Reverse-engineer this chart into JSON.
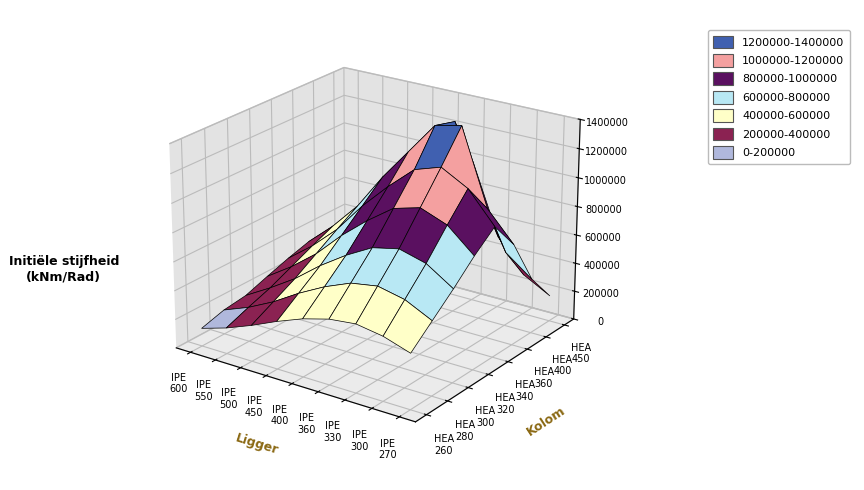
{
  "ligger_labels": [
    "IPE 600",
    "IPE 550",
    "IPE 500",
    "IPE 450",
    "IPE 400",
    "IPE 360",
    "IPE 330",
    "IPE 300",
    "IPE 270"
  ],
  "kolom_labels": [
    "HEA 260",
    "HEA 280",
    "HEA 300",
    "HEA 320",
    "HEA 340",
    "HEA 360",
    "HEA 400",
    "HEA 450"
  ],
  "ylabel_left": "Initiële stijfheid\n(kNm/Rad)",
  "xlabel": "Ligger",
  "kolom_label": "Kolom",
  "zlim": [
    0,
    1400000
  ],
  "zticks": [
    0,
    200000,
    400000,
    600000,
    800000,
    1000000,
    1200000,
    1400000
  ],
  "color_levels": [
    0,
    200000,
    400000,
    600000,
    800000,
    1000000,
    1200000,
    1400000
  ],
  "surf_colors": [
    "#b0b8dc",
    "#8B2252",
    "#ffffc8",
    "#b8e8f4",
    "#5a1060",
    "#f4a0a0",
    "#4060b0"
  ],
  "legend_labels": [
    "1200000-1400000",
    "1000000-1200000",
    "800000-1000000",
    "600000-800000",
    "400000-600000",
    "200000-400000",
    "0-200000"
  ],
  "legend_colors": [
    "#4060b0",
    "#f4a0a0",
    "#5a1060",
    "#b8e8f4",
    "#ffffc8",
    "#8B2252",
    "#b0b8dc"
  ],
  "Z": [
    [
      124989,
      169899,
      190694,
      245322,
      296445,
      340000,
      280000,
      180000
    ],
    [
      180000,
      240000,
      295000,
      365000,
      435000,
      500000,
      440000,
      290000
    ],
    [
      250000,
      330000,
      410000,
      505000,
      600000,
      690000,
      620000,
      420000
    ],
    [
      330000,
      440000,
      550000,
      680000,
      810000,
      940000,
      870000,
      600000
    ],
    [
      400000,
      535000,
      670000,
      830000,
      990000,
      1160000,
      1100000,
      780000
    ],
    [
      450000,
      610000,
      770000,
      960000,
      1150000,
      1380000,
      1340000,
      980000
    ],
    [
      470000,
      640000,
      810000,
      1010000,
      1210000,
      1420000,
      880000,
      500000
    ],
    [
      440000,
      600000,
      760000,
      940000,
      1110000,
      900000,
      520000,
      280000
    ],
    [
      380000,
      510000,
      640000,
      780000,
      900000,
      700000,
      380000,
      180000
    ]
  ],
  "pane_color_left": "#c8c8c8",
  "pane_color_back": "#c8c8c8",
  "pane_color_bottom": "#a8a8a8",
  "elev": 22,
  "azim": -55
}
